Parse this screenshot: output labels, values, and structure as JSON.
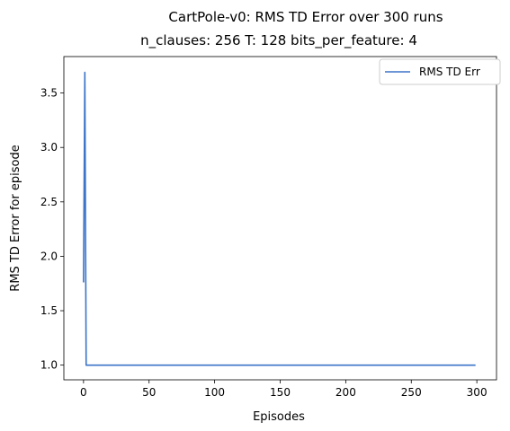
{
  "chart_data": {
    "type": "line",
    "title": "CartPole-v0: RMS TD Error over 300 runs",
    "subtitle": "n_clauses: 256 T: 128 bits_per_feature: 4",
    "xlabel": "Episodes",
    "ylabel": "RMS TD Error for episode",
    "xlim": [
      -15,
      315
    ],
    "ylim": [
      0.865,
      3.835
    ],
    "xticks": [
      0,
      50,
      100,
      150,
      200,
      250,
      300
    ],
    "yticks": [
      1.0,
      1.5,
      2.0,
      2.5,
      3.0,
      3.5
    ],
    "xtick_labels": [
      "0",
      "50",
      "100",
      "150",
      "200",
      "250",
      "300"
    ],
    "ytick_labels": [
      "1.0",
      "1.5",
      "2.0",
      "2.5",
      "3.0",
      "3.5"
    ],
    "legend_position": "top-right",
    "series": [
      {
        "name": "RMS TD Err",
        "color": "#3b74c9",
        "x": [
          0,
          1,
          2,
          3,
          50,
          100,
          150,
          200,
          250,
          299
        ],
        "y": [
          1.76,
          3.69,
          1.0,
          1.0,
          1.0,
          1.0,
          1.0,
          1.0,
          1.0,
          1.0
        ]
      }
    ]
  }
}
